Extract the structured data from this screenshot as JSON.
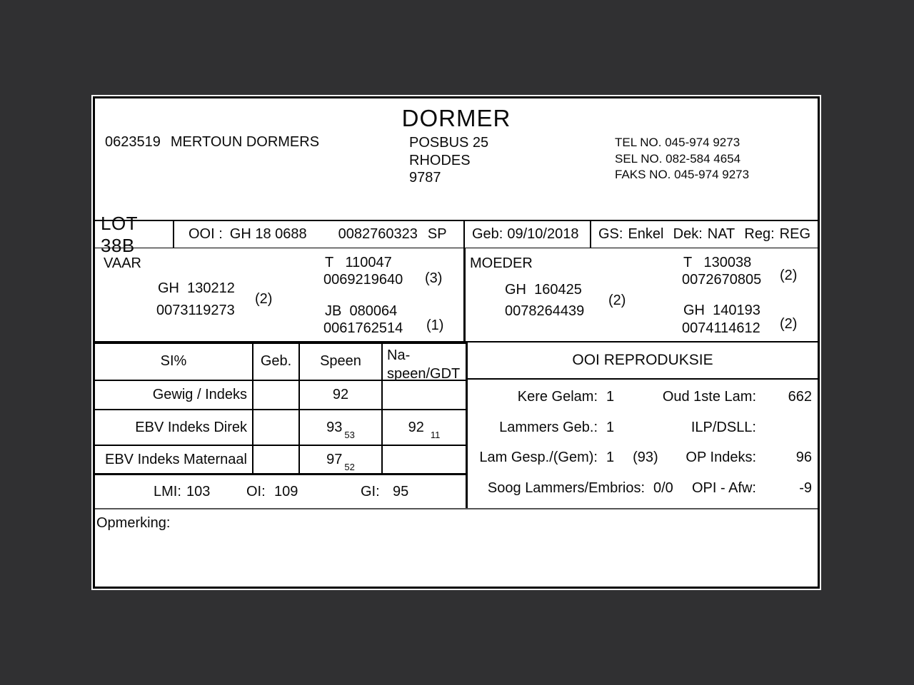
{
  "page": {
    "colors": {
      "background": "#303032",
      "card": "#ffffff",
      "line": "#000000"
    }
  },
  "header": {
    "title": "DORMER",
    "breeder_no": "0623519",
    "breeder_name": "MERTOUN DORMERS",
    "address_lines": [
      "POSBUS 25",
      "RHODES",
      "9787"
    ],
    "contact_lines": [
      "TEL NO. 045-974 9273",
      "SEL NO. 082-584 4654",
      "FAKS NO. 045-974 9273"
    ]
  },
  "lot_row": {
    "lot": "LOT 38B",
    "ooi_label": "OOI :",
    "ooi_id": "GH 18 0688",
    "ooi_reg": "0082760323",
    "ooi_suffix": "SP",
    "geb_label": "Geb:",
    "geb_value": "09/10/2018",
    "gs_label": "GS:",
    "gs_value": "Enkel",
    "dek_label": "Dek:",
    "dek_value": "NAT",
    "reg_label": "Reg:",
    "reg_value": "REG"
  },
  "vaar": {
    "label": "VAAR",
    "id": "GH  130212",
    "reg": "0073119273",
    "note": "(2)",
    "sire": {
      "id": "T   110047",
      "reg": "0069219640",
      "note": "(3)"
    },
    "dam": {
      "id": "JB  080064",
      "reg": "0061762514",
      "note": "(1)"
    }
  },
  "moeder": {
    "label": "MOEDER",
    "id": "GH  160425",
    "reg": "0078264439",
    "note": "(2)",
    "sire": {
      "id": "T   130038",
      "reg": "0072670805",
      "note": "(2)"
    },
    "dam": {
      "id": "GH  140193",
      "reg": "0074114612",
      "note": "(2)"
    }
  },
  "si_table": {
    "header": {
      "si": "SI%",
      "geb": "Geb.",
      "speen": "Speen",
      "naspeen_line1": "Na-",
      "naspeen_line2": "speen/GDT"
    },
    "rows": [
      {
        "label": "Gewig / Indeks",
        "geb": "",
        "speen": "92",
        "speen_sub": "",
        "naspeen": "",
        "naspeen_sub": ""
      },
      {
        "label": "EBV Indeks Direk",
        "geb": "",
        "speen": "93",
        "speen_sub": "53",
        "naspeen": "92",
        "naspeen_sub": "11"
      },
      {
        "label": "EBV Indeks Maternaal",
        "geb": "",
        "speen": "97",
        "speen_sub": "52",
        "naspeen": "",
        "naspeen_sub": ""
      }
    ]
  },
  "indexes": {
    "lmi_label": "LMI:",
    "lmi_value": "103",
    "oi_label": "OI:",
    "oi_value": "109",
    "gi_label": "GI:",
    "gi_value": "95"
  },
  "reproduksie": {
    "title": "OOI REPRODUKSIE",
    "rows": [
      {
        "l_label": "Kere Gelam:",
        "l_value": "1",
        "l_value2": "",
        "r_label": "Oud 1ste Lam:",
        "r_value": "662"
      },
      {
        "l_label": "Lammers Geb.:",
        "l_value": "1",
        "l_value2": "",
        "r_label": "ILP/DSLL:",
        "r_value": ""
      },
      {
        "l_label": "Lam Gesp./(Gem):",
        "l_value": "1",
        "l_value2": "(93)",
        "r_label": "OP Indeks:",
        "r_value": "96"
      },
      {
        "l_label": "Soog Lammers/Embrios:",
        "l_value": "0/0",
        "l_value2": "",
        "r_label": "OPI - Afw:",
        "r_value": "-9"
      }
    ]
  },
  "opmerking": {
    "label": "Opmerking:"
  }
}
